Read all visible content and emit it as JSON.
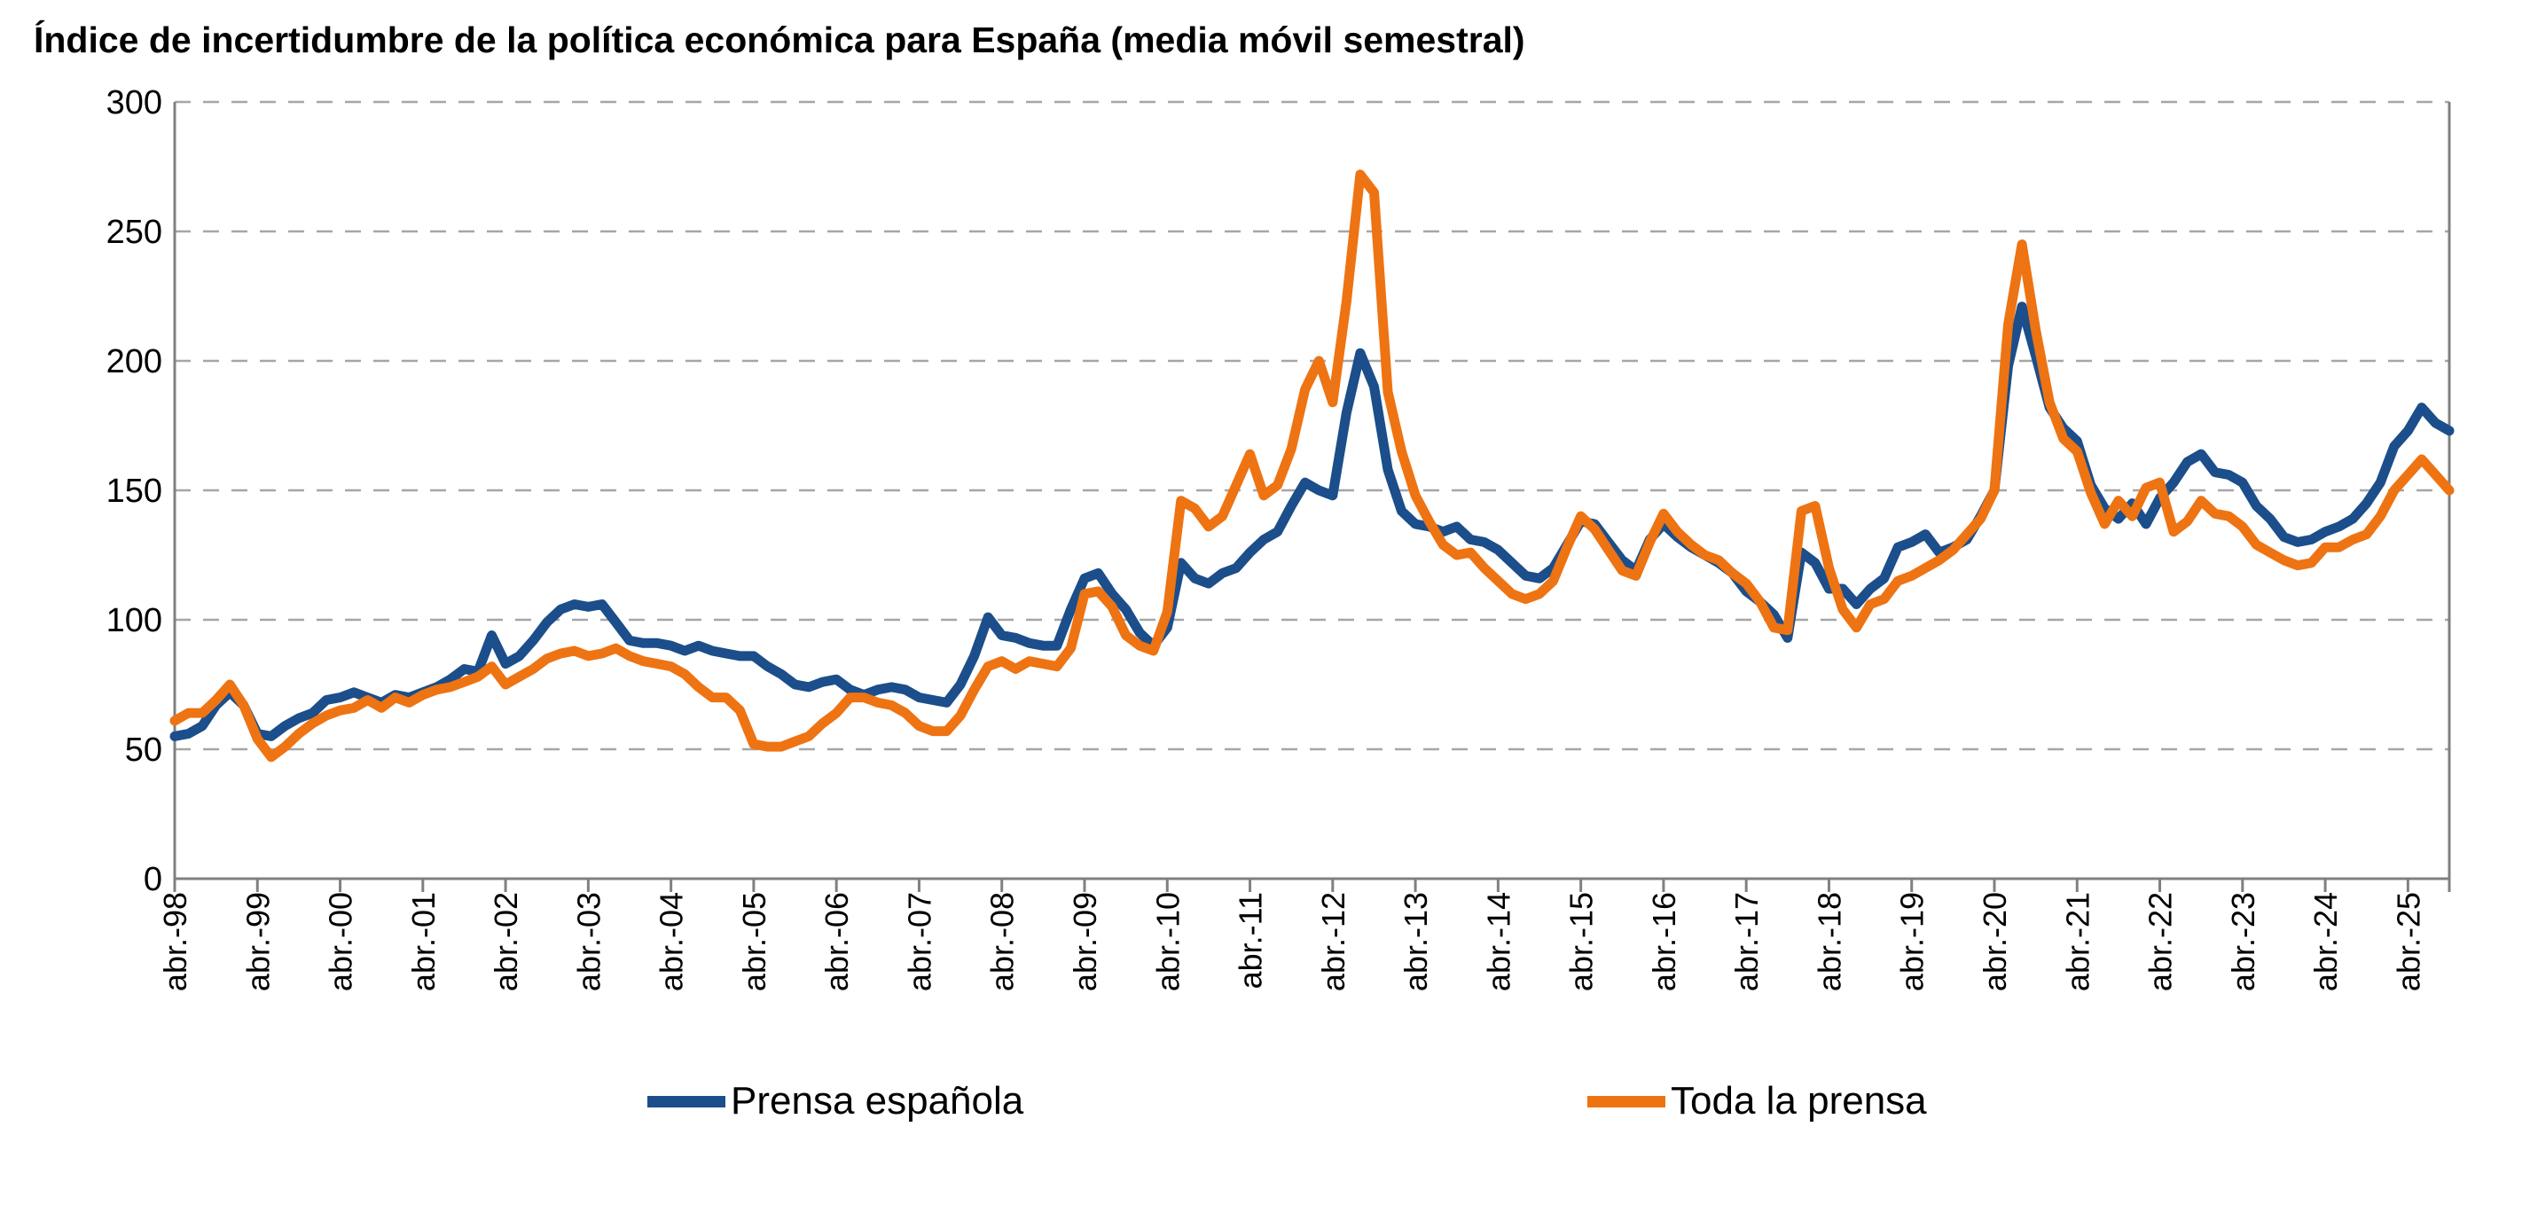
{
  "title": "Índice de incertidumbre de la política económica para España (media móvil semestral)",
  "colors": {
    "spanish_press": "#1b4e8a",
    "all_press": "#ee7312",
    "grid": "#a6a6a6",
    "axis": "#808080",
    "label_text": "#000000"
  },
  "legend": {
    "items": [
      {
        "label": "Prensa española",
        "color": "#1b4e8a"
      },
      {
        "label": "Toda la prensa",
        "color": "#ee7312"
      }
    ]
  },
  "chart_data": {
    "type": "line",
    "title": "Índice de incertidumbre de la política económica para España (media móvil semestral)",
    "xlabel": "",
    "ylabel": "",
    "ylim": [
      0,
      300
    ],
    "y_ticks": [
      0,
      50,
      100,
      150,
      200,
      250,
      300
    ],
    "grid": "horizontal-dashed",
    "legend_position": "bottom",
    "x_tick_labels": [
      "abr.-98",
      "abr.-99",
      "abr.-00",
      "abr.-01",
      "abr.-02",
      "abr.-03",
      "abr.-04",
      "abr.-05",
      "abr.-06",
      "abr.-07",
      "abr.-08",
      "abr.-09",
      "abr.-10",
      "abr.-11",
      "abr.-12",
      "abr.-13",
      "abr.-14",
      "abr.-15",
      "abr.-16",
      "abr.-17",
      "abr.-18",
      "abr.-19",
      "abr.-20",
      "abr.-21",
      "abr.-22",
      "abr.-23",
      "abr.-24",
      "abr.-25"
    ],
    "x_note": "values sampled every 2 months from abr-1998 to oct-2025; every 6th point is an abril tick",
    "points_per_year": 6,
    "series": [
      {
        "name": "Prensa española",
        "color": "#1b4e8a",
        "values": [
          55,
          56,
          59,
          67,
          72,
          67,
          56,
          55,
          59,
          62,
          64,
          69,
          70,
          72,
          70,
          68,
          71,
          70,
          72,
          74,
          77,
          81,
          80,
          94,
          83,
          86,
          92,
          99,
          104,
          106,
          105,
          106,
          99,
          92,
          91,
          91,
          90,
          88,
          90,
          88,
          87,
          86,
          86,
          82,
          79,
          75,
          74,
          76,
          77,
          73,
          71,
          73,
          74,
          73,
          70,
          69,
          68,
          75,
          86,
          101,
          94,
          93,
          91,
          90,
          90,
          104,
          116,
          118,
          110,
          104,
          95,
          90,
          97,
          122,
          116,
          114,
          118,
          120,
          126,
          131,
          134,
          144,
          153,
          150,
          148,
          180,
          203,
          190,
          158,
          142,
          137,
          136,
          134,
          136,
          131,
          130,
          127,
          122,
          117,
          116,
          120,
          129,
          138,
          137,
          130,
          123,
          119,
          131,
          137,
          132,
          128,
          125,
          122,
          118,
          111,
          107,
          102,
          93,
          126,
          122,
          112,
          112,
          106,
          112,
          116,
          128,
          130,
          133,
          126,
          128,
          131,
          140,
          150,
          198,
          221,
          202,
          182,
          174,
          169,
          152,
          143,
          139,
          145,
          137,
          147,
          153,
          161,
          164,
          157,
          156,
          153,
          144,
          139,
          132,
          130,
          131,
          134,
          136,
          139,
          145,
          153,
          167,
          173,
          182,
          176,
          173
        ]
      },
      {
        "name": "Toda la prensa",
        "color": "#ee7312",
        "values": [
          61,
          64,
          64,
          69,
          75,
          67,
          54,
          47,
          51,
          56,
          60,
          63,
          65,
          66,
          69,
          66,
          70,
          68,
          71,
          73,
          74,
          76,
          78,
          82,
          75,
          78,
          81,
          85,
          87,
          88,
          86,
          87,
          89,
          86,
          84,
          83,
          82,
          79,
          74,
          70,
          70,
          65,
          52,
          51,
          51,
          53,
          55,
          60,
          64,
          70,
          70,
          68,
          67,
          64,
          59,
          57,
          57,
          63,
          73,
          82,
          84,
          81,
          84,
          83,
          82,
          89,
          110,
          111,
          105,
          94,
          90,
          88,
          103,
          146,
          143,
          136,
          140,
          152,
          164,
          148,
          152,
          166,
          189,
          200,
          184,
          223,
          272,
          265,
          188,
          165,
          148,
          138,
          129,
          125,
          126,
          120,
          115,
          110,
          108,
          110,
          115,
          128,
          140,
          135,
          127,
          119,
          117,
          130,
          141,
          134,
          129,
          125,
          123,
          118,
          114,
          107,
          97,
          96,
          142,
          144,
          120,
          104,
          97,
          106,
          108,
          115,
          117,
          120,
          123,
          127,
          133,
          139,
          150,
          214,
          245,
          212,
          184,
          170,
          165,
          149,
          137,
          146,
          140,
          151,
          153,
          134,
          138,
          146,
          141,
          140,
          136,
          129,
          126,
          123,
          121,
          122,
          128,
          128,
          131,
          133,
          140,
          150,
          156,
          162,
          156,
          150
        ]
      }
    ]
  }
}
